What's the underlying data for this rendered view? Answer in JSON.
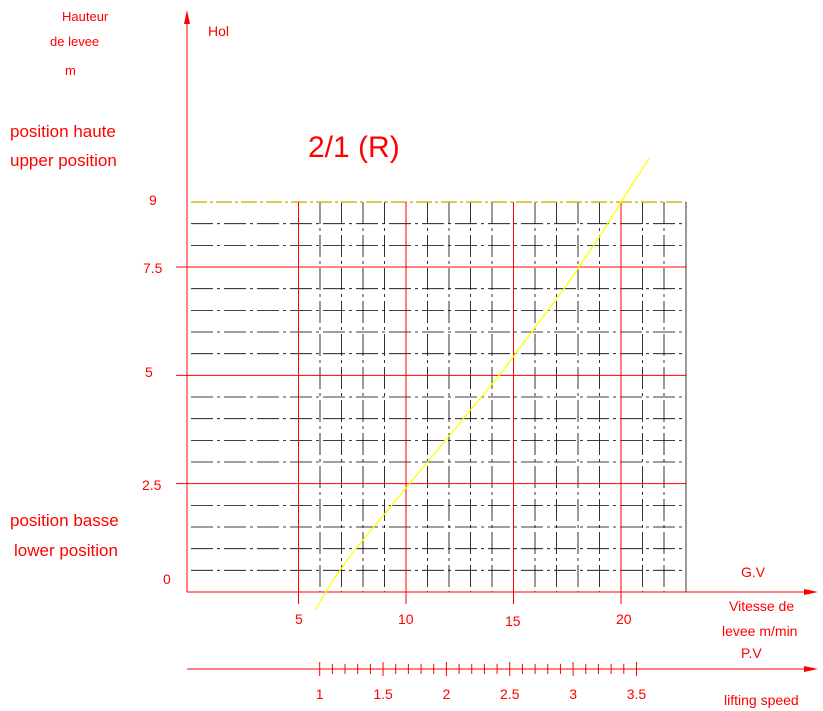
{
  "colors": {
    "axis": "#ff0000",
    "grid_major": "#ff0000",
    "grid_minor": "#000000",
    "curve": "#ffff00",
    "text": "#ff0000"
  },
  "chart_data": {
    "type": "line",
    "title": "2/1 (R)",
    "y_axis": {
      "label_lines": [
        "Hauteur",
        "de levee",
        "m"
      ],
      "unit_label": "Hol",
      "ticks": [
        "0",
        "2.5",
        "5",
        "7.5",
        "9"
      ],
      "tick_values": [
        0,
        2.5,
        5,
        7.5,
        9
      ],
      "ylim": [
        0,
        9
      ]
    },
    "x_axis": {
      "gv_label": "G.V",
      "label_lines": [
        "Vitesse de",
        "levee m/min"
      ],
      "ticks": [
        "5",
        "10",
        "15",
        "20"
      ],
      "tick_values": [
        5,
        10,
        15,
        20
      ],
      "xlim": [
        0,
        23
      ]
    },
    "pv_axis": {
      "label": "P.V",
      "caption": "lifting speed",
      "ticks": [
        "1",
        "1.5",
        "2",
        "2.5",
        "3",
        "3.5"
      ],
      "tick_values": [
        1,
        1.5,
        2,
        2.5,
        3,
        3.5
      ]
    },
    "annotations": {
      "upper": [
        "position haute",
        "upper position"
      ],
      "lower": [
        "position basse",
        "lower position"
      ]
    },
    "grid": true,
    "series": [
      {
        "x": [
          5.8,
          6.5,
          7.5,
          8.5,
          10.0,
          11.5,
          13.0,
          14.5,
          16.0,
          17.5,
          19.0,
          20.0,
          21.3
        ],
        "y": [
          -0.4,
          0.2,
          0.9,
          1.5,
          2.4,
          3.3,
          4.2,
          5.1,
          6.1,
          7.1,
          8.2,
          9.0,
          10.0
        ]
      }
    ]
  }
}
